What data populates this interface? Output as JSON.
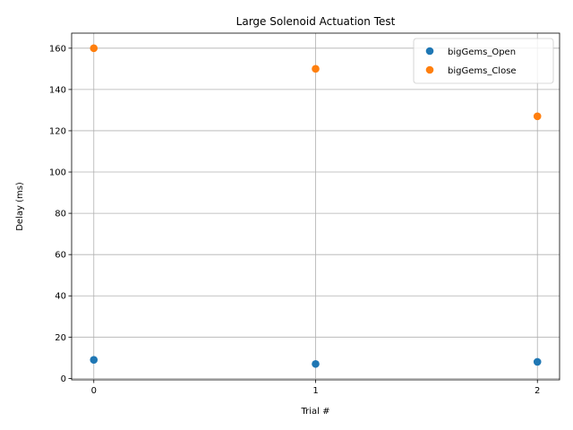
{
  "chart_data": {
    "type": "scatter",
    "title": "Large Solenoid Actuation Test",
    "xlabel": "Trial #",
    "ylabel": "Delay (ms)",
    "x": [
      0,
      1,
      2
    ],
    "xticks": [
      "0",
      "1",
      "2"
    ],
    "yticks": [
      "0",
      "20",
      "40",
      "60",
      "80",
      "100",
      "120",
      "140",
      "160"
    ],
    "xlim": [
      -0.1,
      2.1
    ],
    "ylim": [
      -0.7,
      167.3
    ],
    "grid": true,
    "legend_position": "top-right",
    "series": [
      {
        "name": "bigGems_Open",
        "color": "#1f77b4",
        "values": [
          9,
          7,
          8
        ]
      },
      {
        "name": "bigGems_Close",
        "color": "#ff7f0e",
        "values": [
          160,
          150,
          127
        ]
      }
    ]
  }
}
